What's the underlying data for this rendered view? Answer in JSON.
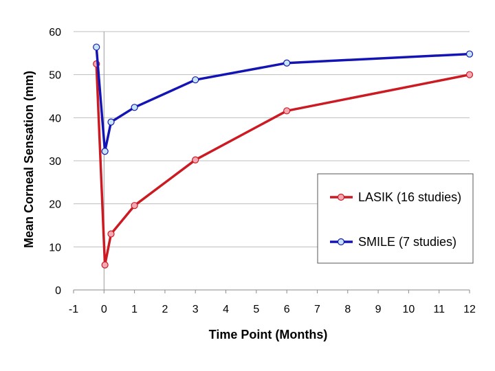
{
  "chart_data": {
    "type": "line",
    "xlabel": "Time Point (Months)",
    "ylabel": "Mean Corneal Sensation (mm)",
    "xlim": [
      -1,
      12
    ],
    "ylim": [
      0,
      60
    ],
    "x_ticks": [
      -1,
      0,
      1,
      2,
      3,
      4,
      5,
      6,
      7,
      8,
      9,
      10,
      11,
      12
    ],
    "y_ticks": [
      0,
      10,
      20,
      30,
      40,
      50,
      60
    ],
    "grid": "horizontal",
    "legend_position": "right",
    "series": [
      {
        "name": "LASIK (16 studies)",
        "color": "#cc1a22",
        "marker_fill": "#f4a8b4",
        "x": [
          -0.25,
          0.03,
          0.23,
          1,
          3,
          6,
          12
        ],
        "y": [
          52.5,
          5.8,
          13,
          19.6,
          30.2,
          41.6,
          50
        ]
      },
      {
        "name": "SMILE (7 studies)",
        "color": "#1414b4",
        "marker_fill": "#c6e6f8",
        "x": [
          -0.25,
          0.03,
          0.23,
          1,
          3,
          6,
          12
        ],
        "y": [
          56.4,
          32.2,
          39,
          42.4,
          48.8,
          52.7,
          54.8
        ]
      }
    ]
  }
}
